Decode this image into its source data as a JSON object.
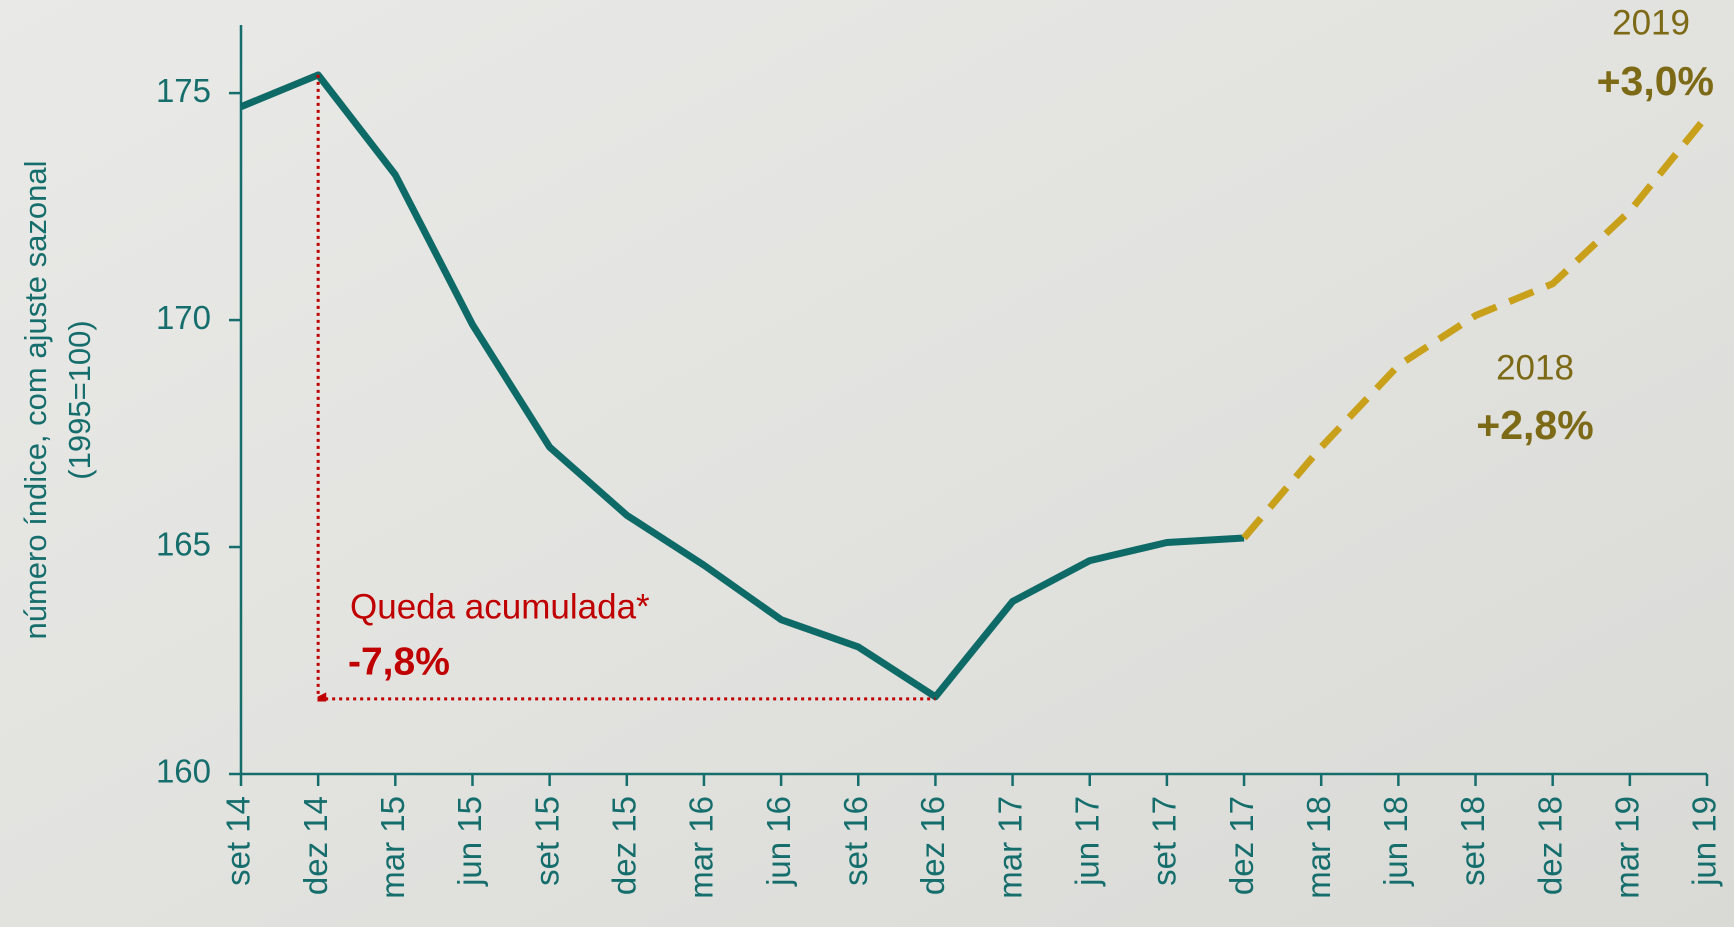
{
  "chart_data": {
    "type": "line",
    "y_label": [
      "número índice, com ajuste sazonal",
      "(1995=100)"
    ],
    "categories": [
      "set 14",
      "dez 14",
      "mar 15",
      "jun 15",
      "set 15",
      "dez 15",
      "mar 16",
      "jun 16",
      "set 16",
      "dez 16",
      "mar 17",
      "jun 17",
      "set 17",
      "dez 17",
      "mar 18",
      "jun 18",
      "set 18",
      "dez 18",
      "mar 19",
      "jun 19"
    ],
    "series": [
      {
        "color": "#0e6a66",
        "dashed": false,
        "values": [
          174.7,
          175.4,
          173.2,
          169.9,
          167.2,
          165.7,
          164.6,
          163.4,
          162.8,
          161.7,
          163.8,
          164.7,
          165.1,
          165.2,
          null,
          null,
          null,
          null,
          null,
          null
        ]
      },
      {
        "color": "#c9a01a",
        "dashed": true,
        "values": [
          null,
          null,
          null,
          null,
          null,
          null,
          null,
          null,
          null,
          null,
          null,
          null,
          null,
          165.2,
          167.2,
          169.0,
          170.1,
          170.8,
          172.4,
          174.5
        ]
      }
    ],
    "ylim": [
      160,
      176.5
    ],
    "yticks": [
      160,
      165,
      170,
      175
    ],
    "annotations": {
      "drop_title": "Queda acumulada*",
      "drop_value": "-7,8%",
      "y2018": "2018",
      "v2018": "+2,8%",
      "y2019": "2019",
      "v2019": "+3,0%"
    }
  }
}
